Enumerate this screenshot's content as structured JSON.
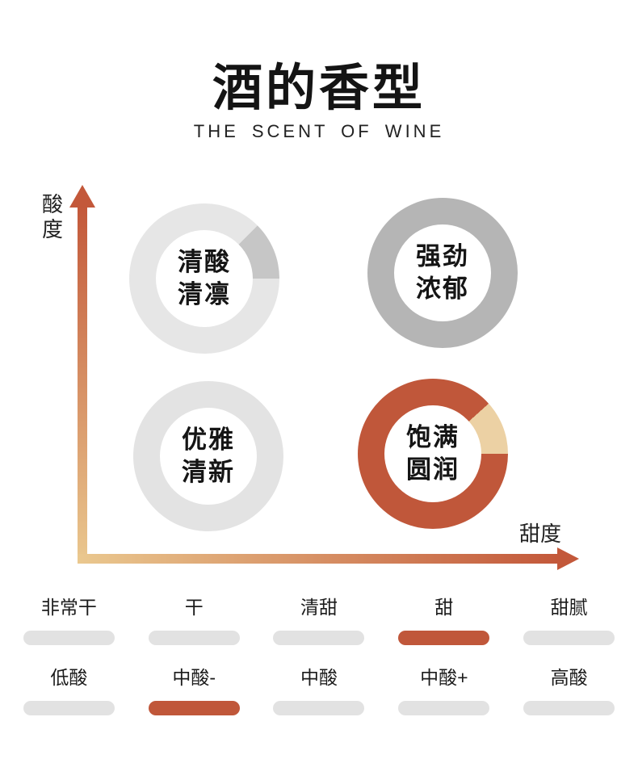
{
  "page": {
    "title": "酒的香型",
    "subtitle": "THE SCENT OF WINE"
  },
  "axes": {
    "y_label": "酸度",
    "x_label": "甜度"
  },
  "quadrants": [
    {
      "id": "top-left",
      "line1": "清酸",
      "line2": "清凛",
      "ring_color": "#e6e6e6",
      "segment_color": "#c6c6c6",
      "segment_start_deg": 45,
      "segment_end_deg": 90
    },
    {
      "id": "top-right",
      "line1": "强劲",
      "line2": "浓郁",
      "ring_color": "#b5b5b5",
      "segment_color": null,
      "segment_start_deg": 0,
      "segment_end_deg": 0
    },
    {
      "id": "bottom-left",
      "line1": "优雅",
      "line2": "清新",
      "ring_color": "#e3e3e3",
      "segment_color": null,
      "segment_start_deg": 0,
      "segment_end_deg": 0
    },
    {
      "id": "bottom-right",
      "line1": "饱满",
      "line2": "圆润",
      "ring_color": "#c0573a",
      "segment_color": "#ecd1a4",
      "segment_start_deg": 48,
      "segment_end_deg": 90
    }
  ],
  "scales": {
    "sweetness": {
      "labels": [
        "非常干",
        "干",
        "清甜",
        "甜",
        "甜腻"
      ],
      "active_index": 3
    },
    "acidity": {
      "labels": [
        "低酸",
        "中酸-",
        "中酸",
        "中酸+",
        "高酸"
      ],
      "active_index": 1
    }
  },
  "colors": {
    "accent": "#c0573a",
    "accent_deep": "#c3583a",
    "accent_light": "#eac88f",
    "pill_gray": "#e2e2e2",
    "ring_light_gray": "#e6e6e6",
    "ring_mid_gray": "#b5b5b5",
    "segment_gray": "#c6c6c6",
    "segment_tan": "#ecd1a4",
    "text_black": "#141414"
  },
  "chart_data": {
    "type": "scatter",
    "title": "酒的香型",
    "subtitle": "THE SCENT OF WINE",
    "xlabel": "甜度",
    "ylabel": "酸度",
    "x_scale_ticks": [
      "非常干",
      "干",
      "清甜",
      "甜",
      "甜腻"
    ],
    "y_scale_ticks": [
      "低酸",
      "中酸-",
      "中酸",
      "中酸+",
      "高酸"
    ],
    "points": [
      {
        "label": "清酸清凛",
        "sweetness": "low",
        "acidity": "high",
        "ring_color": "#e6e6e6"
      },
      {
        "label": "强劲浓郁",
        "sweetness": "high",
        "acidity": "high",
        "ring_color": "#b5b5b5"
      },
      {
        "label": "优雅清新",
        "sweetness": "low",
        "acidity": "low",
        "ring_color": "#e3e3e3"
      },
      {
        "label": "饱满圆润",
        "sweetness": "high",
        "acidity": "low",
        "ring_color": "#c0573a"
      }
    ],
    "highlighted_values": {
      "sweetness": "甜",
      "acidity": "中酸-"
    },
    "legend": "off",
    "grid": "off"
  }
}
